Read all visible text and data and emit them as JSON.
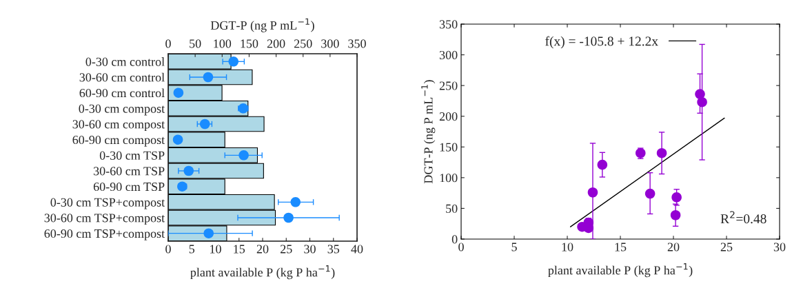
{
  "chart_data": [
    {
      "type": "bar",
      "orientation": "horizontal",
      "categories": [
        "0-30 cm control",
        "30-60 cm control",
        "60-90 cm control",
        "0-30 cm compost",
        "30-60 cm compost",
        "60-90 cm compost",
        "0-30 cm TSP",
        "30-60 cm TSP",
        "60-90 cm TSP",
        "0-30 cm TSP+compost",
        "30-60 cm TSP+compost",
        "60-90 cm TSP+compost"
      ],
      "series": [
        {
          "color": "#add8e6",
          "values": [
            13.3,
            17.8,
            11.4,
            16.9,
            20.3,
            12.0,
            18.9,
            20.2,
            12.0,
            22.5,
            22.7,
            12.4
          ]
        },
        {
          "type": "scatter",
          "axis": "x2",
          "marker": "circle",
          "color": "#1a8cff",
          "values": [
            121,
            74,
            19,
            139,
            68,
            18,
            140,
            38,
            26,
            236,
            223,
            75
          ],
          "errors": [
            [
              101,
              141
            ],
            [
              40,
              108
            ],
            null,
            [
              130,
              148
            ],
            [
              54,
              81
            ],
            null,
            [
              105,
              174
            ],
            [
              19,
              57
            ],
            [
              19,
              34
            ],
            [
              204,
              269
            ],
            [
              129,
              317
            ],
            [
              0,
              156
            ]
          ]
        }
      ],
      "xlabel": "plant available P (kg P ha$^{−1}$)",
      "x2label": "DGT-P (ng P mL$^{−1}$)",
      "xlim": [
        0,
        40
      ],
      "xticks": [
        0,
        5,
        10,
        15,
        20,
        25,
        30,
        35,
        40
      ],
      "x2lim": [
        0,
        350
      ],
      "x2ticks": [
        0,
        50,
        100,
        150,
        200,
        250,
        300,
        350
      ],
      "grid": false,
      "legend": false
    },
    {
      "type": "scatter",
      "series": [
        {
          "color": "#9400d3",
          "marker": "circle",
          "x": [
            13.3,
            17.8,
            11.4,
            16.9,
            20.3,
            12.0,
            18.9,
            20.2,
            12.0,
            22.5,
            22.7,
            12.4
          ],
          "values": [
            121,
            74,
            20,
            140,
            68,
            18,
            140,
            39,
            27,
            236,
            223,
            76
          ],
          "errors": [
            [
              101,
              141
            ],
            [
              41,
              108
            ],
            null,
            [
              131,
              148
            ],
            [
              55,
              81
            ],
            null,
            [
              106,
              174
            ],
            [
              21,
              57
            ],
            [
              27,
              34
            ],
            [
              205,
              269
            ],
            [
              129,
              317
            ],
            [
              0,
              156
            ]
          ]
        },
        {
          "type": "line",
          "name": "f(x) = -105.8 + 12.2x",
          "color": "#000000",
          "x": [
            10.3,
            24.8
          ],
          "values": [
            20,
            197
          ]
        }
      ],
      "xlabel": "plant available P (kg P ha$^{−1}$)",
      "ylabel": "DGT-P (ng P mL$^{−1}$)",
      "xlim": [
        0,
        30
      ],
      "xticks": [
        0,
        5,
        10,
        15,
        20,
        25,
        30
      ],
      "ylim": [
        0,
        350
      ],
      "yticks": [
        0,
        50,
        100,
        150,
        200,
        250,
        300,
        350
      ],
      "annotations": [
        "R$^{2}$=0.48"
      ],
      "grid": false,
      "legend": "top"
    }
  ]
}
